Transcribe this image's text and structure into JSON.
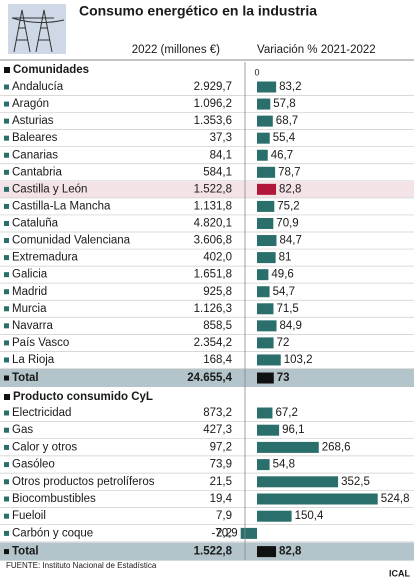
{
  "title": "Consumo energético en la industria",
  "columns": [
    "2022 (millones €)",
    "Variación % 2021-2022"
  ],
  "zero": 0,
  "sections": [
    {
      "heading": "Comunidades",
      "rows": [
        {
          "name": "Andalucía",
          "value": "2.929,7",
          "change": 83.2,
          "change_label": "83,2"
        },
        {
          "name": "Aragón",
          "value": "1.096,2",
          "change": 57.8,
          "change_label": "57,8"
        },
        {
          "name": "Asturias",
          "value": "1.353,6",
          "change": 68.7,
          "change_label": "68,7"
        },
        {
          "name": "Baleares",
          "value": "37,3",
          "change": 55.4,
          "change_label": "55,4"
        },
        {
          "name": "Canarias",
          "value": "84,1",
          "change": 46.7,
          "change_label": "46,7"
        },
        {
          "name": "Cantabria",
          "value": "584,1",
          "change": 78.7,
          "change_label": "78,7"
        },
        {
          "name": "Castilla y León",
          "value": "1.522,8",
          "change": 82.8,
          "change_label": "82,8"
        },
        {
          "name": "Castilla-La Mancha",
          "value": "1.131,8",
          "change": 75.2,
          "change_label": "75,2"
        },
        {
          "name": "Cataluña",
          "value": "4.820,1",
          "change": 70.9,
          "change_label": "70,9"
        },
        {
          "name": "Comunidad Valenciana",
          "value": "3.606,8",
          "change": 84.7,
          "change_label": "84,7"
        },
        {
          "name": "Extremadura",
          "value": "402,0",
          "change": 81,
          "change_label": "81"
        },
        {
          "name": "Galicia",
          "value": "1.651,8",
          "change": 49.6,
          "change_label": "49,6"
        },
        {
          "name": "Madrid",
          "value": "925,8",
          "change": 54.7,
          "change_label": "54,7"
        },
        {
          "name": "Murcia",
          "value": "1.126,3",
          "change": 71.5,
          "change_label": "71,5"
        },
        {
          "name": "Navarra",
          "value": "858,5",
          "change": 84.9,
          "change_label": "84,9"
        },
        {
          "name": "País Vasco",
          "value": "2.354,2",
          "change": 72,
          "change_label": "72"
        },
        {
          "name": "La Rioja",
          "value": "168,4",
          "change": 103.2,
          "change_label": "103,2"
        }
      ],
      "total": {
        "name": "Total",
        "value": "24.655,4",
        "change": 73,
        "change_label": "73"
      }
    },
    {
      "heading": "Producto consumido CyL",
      "rows": [
        {
          "name": "Electricidad",
          "value": "873,2",
          "change": 67.2,
          "change_label": "67,2"
        },
        {
          "name": "Gas",
          "value": "427,3",
          "change": 96.1,
          "change_label": "96,1"
        },
        {
          "name": "Calor y otros",
          "value": "97,2",
          "change": 268.6,
          "change_label": "268,6"
        },
        {
          "name": "Gasóleo",
          "value": "73,9",
          "change": 54.8,
          "change_label": "54,8"
        },
        {
          "name": "Otros productos petrolíferos",
          "value": "21,5",
          "change": 352.5,
          "change_label": "352,5"
        },
        {
          "name": "Biocombustibles",
          "value": "19,4",
          "change": 524.8,
          "change_label": "524,8"
        },
        {
          "name": "Fueloil",
          "value": "7,9",
          "change": 150.4,
          "change_label": "150,4"
        },
        {
          "name": "Carbón y coque",
          "value": "2,2",
          "change": -70.9,
          "change_label": "-70,9"
        }
      ],
      "total": {
        "name": "Total",
        "value": "1.522,8",
        "change": 82.8,
        "change_label": "82,8"
      }
    }
  ],
  "source": "FUENTE: Instituto Nacional de Estadística",
  "credit": "ICAL"
}
